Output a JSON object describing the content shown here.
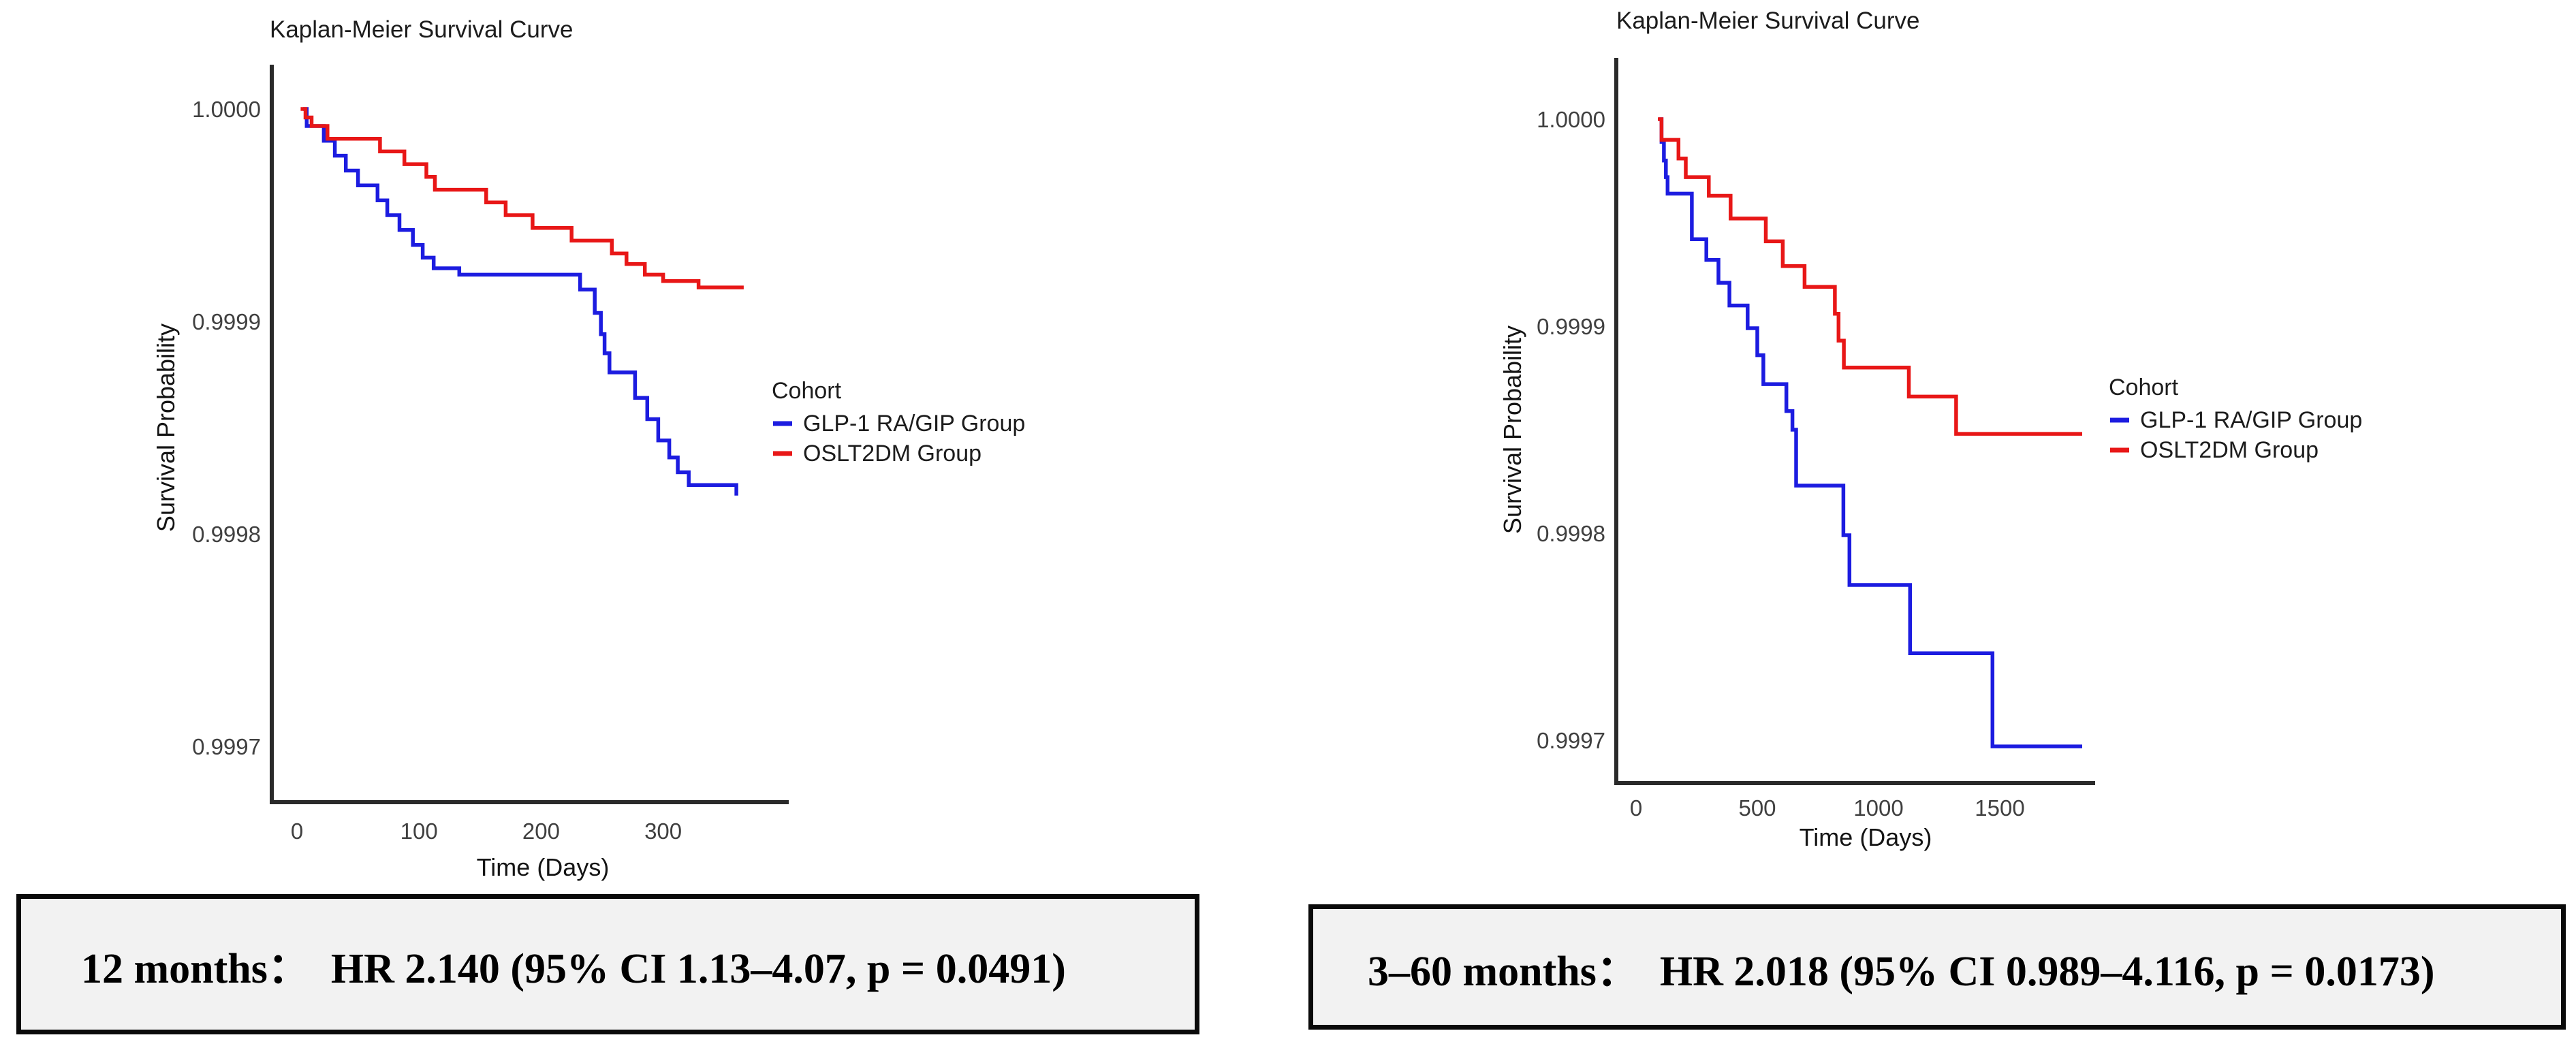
{
  "page": {
    "background": "#ffffff"
  },
  "colors": {
    "glp1_blue": "#1c1ce0",
    "oslt2dm_red": "#e81717",
    "axis": "#2a2a2a",
    "tick_label": "#404040",
    "title_text": "#1c1c1c",
    "note_bg": "#f2f2f2",
    "note_border": "#0a0a0a"
  },
  "chart_data": [
    {
      "type": "line",
      "subtype": "step-survival",
      "title": "Kaplan-Meier Survival Curve",
      "xlabel": "Time (Days)",
      "ylabel": "Survival Probability",
      "xticks": [
        0,
        100,
        200,
        300
      ],
      "yticks": [
        1.0,
        0.9999,
        0.9998,
        0.9997
      ],
      "ytick_labels": [
        "1.0000",
        "0.9999",
        "0.9998",
        "0.9997"
      ],
      "xlim": [
        0,
        404
      ],
      "ylim": [
        0.99967,
        1.00002
      ],
      "grid": false,
      "legend_position": "right",
      "legend_title": "Cohort",
      "series": [
        {
          "name": "GLP-1 RA/GIP Group",
          "color": "#1c1ce0",
          "points": [
            [
              5,
              1.0
            ],
            [
              8,
              0.999992
            ],
            [
              22,
              0.999985
            ],
            [
              31,
              0.999978
            ],
            [
              40,
              0.999971
            ],
            [
              50,
              0.999964
            ],
            [
              66,
              0.999957
            ],
            [
              74,
              0.99995
            ],
            [
              84,
              0.999943
            ],
            [
              95,
              0.999936
            ],
            [
              103,
              0.99993
            ],
            [
              112,
              0.999925
            ],
            [
              133,
              0.999922
            ],
            [
              232,
              0.999915
            ],
            [
              244,
              0.999904
            ],
            [
              249,
              0.999894
            ],
            [
              252,
              0.999885
            ],
            [
              256,
              0.999876
            ],
            [
              277,
              0.999864
            ],
            [
              287,
              0.999854
            ],
            [
              296,
              0.999844
            ],
            [
              305,
              0.999836
            ],
            [
              312,
              0.999829
            ],
            [
              321,
              0.999823
            ],
            [
              360,
              0.999818
            ]
          ]
        },
        {
          "name": "OSLT2DM Group",
          "color": "#e81717",
          "points": [
            [
              3,
              1.0
            ],
            [
              7,
              0.999996
            ],
            [
              12,
              0.999992
            ],
            [
              25,
              0.999986
            ],
            [
              68,
              0.99998
            ],
            [
              88,
              0.999974
            ],
            [
              106,
              0.999968
            ],
            [
              113,
              0.999962
            ],
            [
              155,
              0.999956
            ],
            [
              171,
              0.99995
            ],
            [
              193,
              0.999944
            ],
            [
              225,
              0.999938
            ],
            [
              258,
              0.999932
            ],
            [
              270,
              0.999927
            ],
            [
              285,
              0.999922
            ],
            [
              300,
              0.999919
            ],
            [
              329,
              0.999916
            ],
            [
              366,
              0.999916
            ]
          ]
        }
      ]
    },
    {
      "type": "line",
      "subtype": "step-survival",
      "title": "Kaplan-Meier Survival Curve",
      "xlabel": "Time (Days)",
      "ylabel": "Survival Probability",
      "xticks": [
        0,
        500,
        1000,
        1500
      ],
      "yticks": [
        1.0,
        0.9999,
        0.9998,
        0.9997
      ],
      "ytick_labels": [
        "1.0000",
        "0.9999",
        "0.9998",
        "0.9997"
      ],
      "xlim": [
        0,
        1880
      ],
      "ylim": [
        0.99967,
        1.00002
      ],
      "grid": false,
      "legend_position": "right",
      "legend_title": "Cohort",
      "series": [
        {
          "name": "GLP-1 RA/GIP Group",
          "color": "#1c1ce0",
          "points": [
            [
              95,
              1.0
            ],
            [
              105,
              0.999989
            ],
            [
              115,
              0.99998
            ],
            [
              123,
              0.999972
            ],
            [
              130,
              0.999964
            ],
            [
              230,
              0.999942
            ],
            [
              290,
              0.999932
            ],
            [
              340,
              0.999921
            ],
            [
              385,
              0.99991
            ],
            [
              460,
              0.999899
            ],
            [
              500,
              0.999886
            ],
            [
              525,
              0.999872
            ],
            [
              620,
              0.999859
            ],
            [
              645,
              0.99985
            ],
            [
              660,
              0.999823
            ],
            [
              855,
              0.999799
            ],
            [
              880,
              0.999775
            ],
            [
              1130,
              0.999742
            ],
            [
              1470,
              0.999697
            ],
            [
              1840,
              0.999697
            ]
          ]
        },
        {
          "name": "OSLT2DM Group",
          "color": "#e81717",
          "points": [
            [
              90,
              1.0
            ],
            [
              105,
              0.99999
            ],
            [
              175,
              0.999981
            ],
            [
              205,
              0.999972
            ],
            [
              300,
              0.999963
            ],
            [
              390,
              0.999952
            ],
            [
              535,
              0.999941
            ],
            [
              605,
              0.999929
            ],
            [
              695,
              0.999919
            ],
            [
              820,
              0.999906
            ],
            [
              835,
              0.999893
            ],
            [
              857,
              0.99988
            ],
            [
              1125,
              0.999866
            ],
            [
              1320,
              0.999848
            ],
            [
              1840,
              0.999848
            ]
          ]
        }
      ]
    }
  ],
  "annotations": [
    {
      "text": "12 months：  HR 2.140 (95% CI 1.13–4.07, p = 0.0491)"
    },
    {
      "text": "3–60 months：  HR 2.018 (95% CI 0.989–4.116, p = 0.0173)"
    }
  ]
}
